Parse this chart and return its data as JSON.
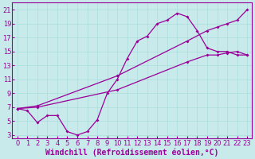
{
  "bg_color": "#c8eaea",
  "line_color": "#990099",
  "grid_color": "#aadddd",
  "xlabel": "Windchill (Refroidissement éolien,°C)",
  "xlabel_fontsize": 7.0,
  "tick_fontsize": 6.0,
  "xlim": [
    -0.5,
    23.5
  ],
  "ylim": [
    2.5,
    22
  ],
  "yticks": [
    3,
    5,
    7,
    9,
    11,
    13,
    15,
    17,
    19,
    21
  ],
  "xticks": [
    0,
    1,
    2,
    3,
    4,
    5,
    6,
    7,
    8,
    9,
    10,
    11,
    12,
    13,
    14,
    15,
    16,
    17,
    18,
    19,
    20,
    21,
    22,
    23
  ],
  "curve1_x": [
    0,
    1,
    2,
    3,
    4,
    5,
    6,
    7,
    8,
    9,
    10,
    11,
    12,
    13,
    14,
    15,
    16,
    17,
    18,
    19,
    20,
    21,
    22,
    23
  ],
  "curve1_y": [
    6.8,
    6.5,
    4.8,
    5.8,
    5.8,
    3.5,
    3.0,
    3.5,
    5.2,
    9.0,
    11.0,
    14.0,
    16.5,
    17.2,
    19.0,
    19.5,
    20.5,
    20.0,
    18.0,
    15.5,
    15.0,
    15.0,
    14.5,
    14.5
  ],
  "curve2_x": [
    0,
    2,
    10,
    17,
    19,
    20,
    21,
    22,
    23
  ],
  "curve2_y": [
    6.8,
    7.2,
    11.5,
    16.5,
    18.0,
    18.5,
    19.0,
    19.5,
    21.0
  ],
  "curve3_x": [
    0,
    2,
    10,
    17,
    19,
    20,
    21,
    22,
    23
  ],
  "curve3_y": [
    6.8,
    7.0,
    9.5,
    13.5,
    14.5,
    14.5,
    14.8,
    15.0,
    14.5
  ]
}
